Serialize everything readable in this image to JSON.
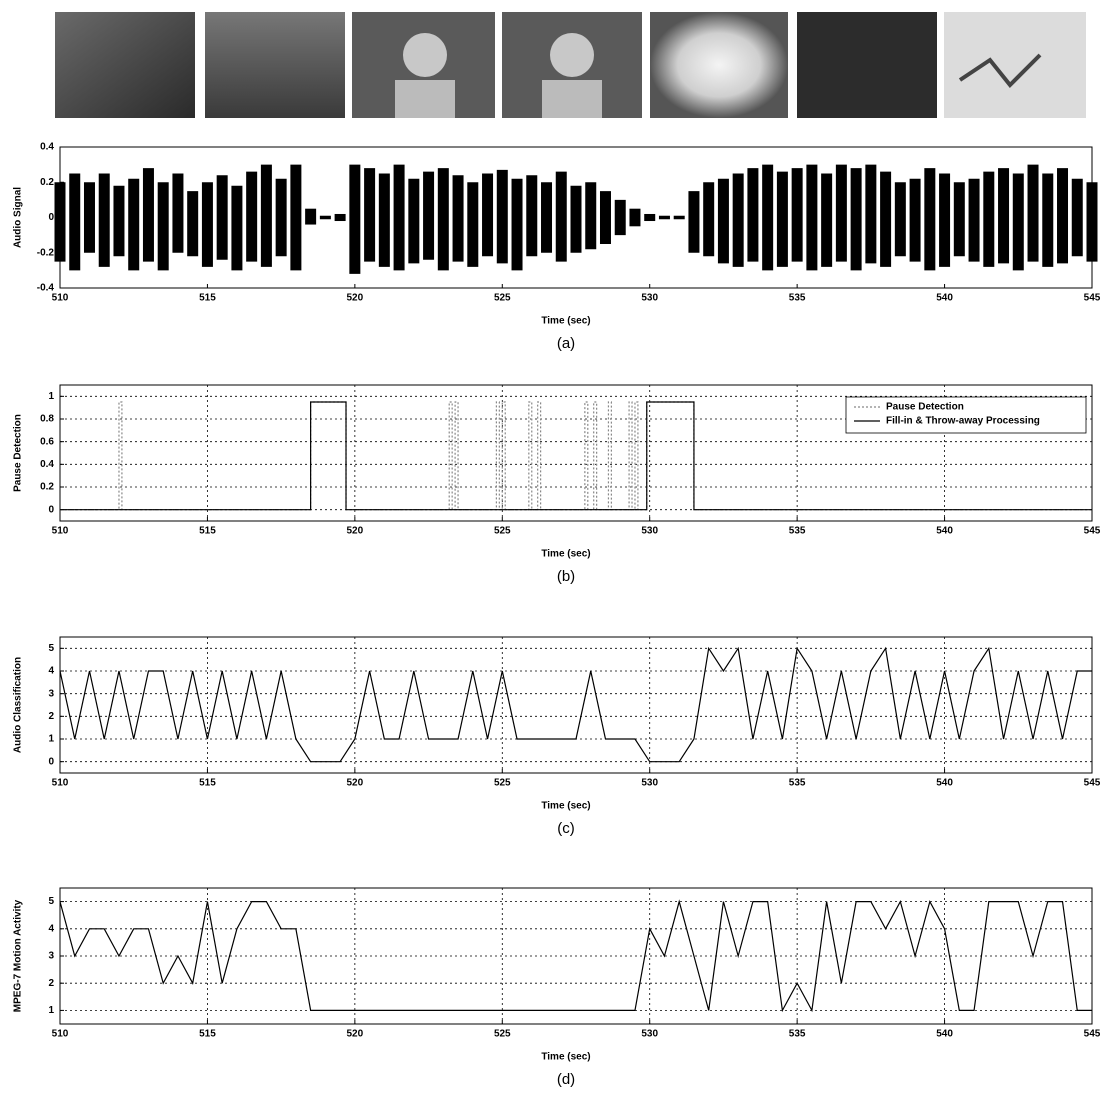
{
  "chart_data": [
    {
      "type": "envelope",
      "ylabel": "Audio Signal",
      "xlabel": "Time (sec)",
      "caption": "(a)",
      "grid": false,
      "color": "#000000",
      "xlim": [
        510,
        545
      ],
      "xticks": [
        510,
        515,
        520,
        525,
        530,
        535,
        540,
        545
      ],
      "ylim": [
        -0.4,
        0.4
      ],
      "yticks": [
        -0.4,
        -0.2,
        0,
        0.2,
        0.4
      ],
      "x": [
        510,
        510.5,
        511,
        511.5,
        512,
        512.5,
        513,
        513.5,
        514,
        514.5,
        515,
        515.5,
        516,
        516.5,
        517,
        517.5,
        518,
        518.5,
        519,
        519.5,
        520,
        520.5,
        521,
        521.5,
        522,
        522.5,
        523,
        523.5,
        524,
        524.5,
        525,
        525.5,
        526,
        526.5,
        527,
        527.5,
        528,
        528.5,
        529,
        529.5,
        530,
        530.5,
        531,
        531.5,
        532,
        532.5,
        533,
        533.5,
        534,
        534.5,
        535,
        535.5,
        536,
        536.5,
        537,
        537.5,
        538,
        538.5,
        539,
        539.5,
        540,
        540.5,
        541,
        541.5,
        542,
        542.5,
        543,
        543.5,
        544,
        544.5,
        545
      ],
      "high": [
        0.2,
        0.25,
        0.2,
        0.25,
        0.18,
        0.22,
        0.28,
        0.2,
        0.25,
        0.15,
        0.2,
        0.24,
        0.18,
        0.26,
        0.3,
        0.22,
        0.3,
        0.05,
        0.01,
        0.02,
        0.3,
        0.28,
        0.25,
        0.3,
        0.22,
        0.26,
        0.28,
        0.24,
        0.2,
        0.25,
        0.27,
        0.22,
        0.24,
        0.2,
        0.26,
        0.18,
        0.2,
        0.15,
        0.1,
        0.05,
        0.02,
        0.01,
        0.01,
        0.15,
        0.2,
        0.22,
        0.25,
        0.28,
        0.3,
        0.26,
        0.28,
        0.3,
        0.25,
        0.3,
        0.28,
        0.3,
        0.26,
        0.2,
        0.22,
        0.28,
        0.25,
        0.2,
        0.22,
        0.26,
        0.28,
        0.25,
        0.3,
        0.25,
        0.28,
        0.22,
        0.2
      ],
      "low": [
        -0.25,
        -0.3,
        -0.2,
        -0.28,
        -0.22,
        -0.3,
        -0.25,
        -0.3,
        -0.2,
        -0.22,
        -0.28,
        -0.24,
        -0.3,
        -0.25,
        -0.28,
        -0.22,
        -0.3,
        -0.04,
        -0.01,
        -0.02,
        -0.32,
        -0.25,
        -0.28,
        -0.3,
        -0.26,
        -0.24,
        -0.3,
        -0.25,
        -0.28,
        -0.22,
        -0.26,
        -0.3,
        -0.22,
        -0.2,
        -0.25,
        -0.2,
        -0.18,
        -0.15,
        -0.1,
        -0.05,
        -0.02,
        -0.01,
        -0.01,
        -0.2,
        -0.22,
        -0.26,
        -0.28,
        -0.25,
        -0.3,
        -0.28,
        -0.25,
        -0.3,
        -0.28,
        -0.25,
        -0.3,
        -0.26,
        -0.28,
        -0.22,
        -0.25,
        -0.3,
        -0.28,
        -0.22,
        -0.25,
        -0.28,
        -0.26,
        -0.3,
        -0.25,
        -0.28,
        -0.26,
        -0.22,
        -0.25
      ]
    },
    {
      "type": "line",
      "ylabel": "Pause Detection",
      "xlabel": "Time (sec)",
      "caption": "(b)",
      "grid": true,
      "legend": "upper right",
      "xlim": [
        510,
        545
      ],
      "xticks": [
        510,
        515,
        520,
        525,
        530,
        535,
        540,
        545
      ],
      "ylim": [
        -0.1,
        1.1
      ],
      "yticks": [
        0,
        0.2,
        0.4,
        0.6,
        0.8,
        1
      ],
      "series": [
        {
          "name": "Pause Detection",
          "color": "#888888",
          "linestyle": "dotted",
          "x": [
            510,
            512,
            512,
            512.1,
            512.1,
            518.5,
            518.5,
            519.7,
            519.7,
            523.2,
            523.2,
            523.3,
            523.3,
            523.4,
            523.4,
            523.5,
            523.5,
            524.8,
            524.8,
            524.9,
            524.9,
            525,
            525,
            525.1,
            525.1,
            525.9,
            525.9,
            526,
            526,
            526.2,
            526.2,
            526.3,
            526.3,
            527.8,
            527.8,
            527.9,
            527.9,
            528.1,
            528.1,
            528.2,
            528.2,
            528.6,
            528.6,
            528.7,
            528.7,
            529.3,
            529.3,
            529.4,
            529.4,
            529.5,
            529.5,
            529.6,
            529.6,
            529.9,
            529.9,
            531.5,
            531.5,
            545
          ],
          "values": [
            0,
            0,
            0.95,
            0.95,
            0,
            0,
            0.95,
            0.95,
            0,
            0,
            0.95,
            0.95,
            0,
            0,
            0.95,
            0.95,
            0,
            0,
            0.95,
            0.95,
            0,
            0,
            0.95,
            0.95,
            0,
            0,
            0.95,
            0.95,
            0,
            0,
            0.95,
            0.95,
            0,
            0,
            0.95,
            0.95,
            0,
            0,
            0.95,
            0.95,
            0,
            0,
            0.95,
            0.95,
            0,
            0,
            0.95,
            0.95,
            0,
            0,
            0.95,
            0.95,
            0,
            0,
            0.95,
            0.95,
            0,
            0
          ]
        },
        {
          "name": "Fill-in & Throw-away Processing",
          "color": "#000000",
          "linestyle": "solid",
          "x": [
            510,
            518.5,
            518.5,
            519.7,
            519.7,
            529.9,
            529.9,
            531.5,
            531.5,
            545
          ],
          "values": [
            0,
            0,
            0.95,
            0.95,
            0,
            0,
            0.95,
            0.95,
            0,
            0
          ]
        }
      ]
    },
    {
      "type": "line",
      "ylabel": "Audio Classification",
      "xlabel": "Time (sec)",
      "caption": "(c)",
      "grid": true,
      "color": "#000000",
      "xlim": [
        510,
        545
      ],
      "xticks": [
        510,
        515,
        520,
        525,
        530,
        535,
        540,
        545
      ],
      "ylim": [
        -0.5,
        5.5
      ],
      "yticks": [
        0,
        1,
        2,
        3,
        4,
        5
      ],
      "x": [
        510,
        510.5,
        511,
        511.5,
        512,
        512.5,
        513,
        513.5,
        514,
        514.5,
        515,
        515.5,
        516,
        516.5,
        517,
        517.5,
        518,
        518.5,
        519,
        519.5,
        520,
        520.5,
        521,
        521.5,
        522,
        522.5,
        523,
        523.5,
        524,
        524.5,
        525,
        525.5,
        526,
        526.5,
        527,
        527.5,
        528,
        528.5,
        529,
        529.5,
        530,
        530.5,
        531,
        531.5,
        532,
        532.5,
        533,
        533.5,
        534,
        534.5,
        535,
        535.5,
        536,
        536.5,
        537,
        537.5,
        538,
        538.5,
        539,
        539.5,
        540,
        540.5,
        541,
        541.5,
        542,
        542.5,
        543,
        543.5,
        544,
        544.5,
        545
      ],
      "values": [
        4,
        1,
        4,
        1,
        4,
        1,
        4,
        4,
        1,
        4,
        1,
        4,
        1,
        4,
        1,
        4,
        1,
        0,
        0,
        0,
        1,
        4,
        1,
        1,
        4,
        1,
        1,
        1,
        4,
        1,
        4,
        1,
        1,
        1,
        1,
        1,
        4,
        1,
        1,
        1,
        0,
        0,
        0,
        1,
        5,
        4,
        5,
        1,
        4,
        1,
        5,
        4,
        1,
        4,
        1,
        4,
        5,
        1,
        4,
        1,
        4,
        1,
        4,
        5,
        1,
        4,
        1,
        4,
        1,
        4,
        4
      ]
    },
    {
      "type": "line",
      "ylabel": "MPEG-7 Motion Activity",
      "xlabel": "Time (sec)",
      "caption": "(d)",
      "grid": true,
      "color": "#000000",
      "xlim": [
        510,
        545
      ],
      "xticks": [
        510,
        515,
        520,
        525,
        530,
        535,
        540,
        545
      ],
      "ylim": [
        0.5,
        5.5
      ],
      "yticks": [
        1,
        2,
        3,
        4,
        5
      ],
      "x": [
        510,
        510.5,
        511,
        511.5,
        512,
        512.5,
        513,
        513.5,
        514,
        514.5,
        515,
        515.5,
        516,
        516.5,
        517,
        517.5,
        518,
        518.5,
        519,
        519.5,
        520,
        520.5,
        521,
        521.5,
        522,
        522.5,
        523,
        523.5,
        524,
        524.5,
        525,
        525.5,
        526,
        526.5,
        527,
        527.5,
        528,
        528.5,
        529,
        529.5,
        530,
        530.5,
        531,
        531.5,
        532,
        532.5,
        533,
        533.5,
        534,
        534.5,
        535,
        535.5,
        536,
        536.5,
        537,
        537.5,
        538,
        538.5,
        539,
        539.5,
        540,
        540.5,
        541,
        541.5,
        542,
        542.5,
        543,
        543.5,
        544,
        544.5,
        545
      ],
      "values": [
        5,
        3,
        4,
        4,
        3,
        4,
        4,
        2,
        3,
        2,
        5,
        2,
        4,
        5,
        5,
        4,
        4,
        1,
        1,
        1,
        1,
        1,
        1,
        1,
        1,
        1,
        1,
        1,
        1,
        1,
        1,
        1,
        1,
        1,
        1,
        1,
        1,
        1,
        1,
        1,
        4,
        3,
        5,
        3,
        1,
        5,
        3,
        5,
        5,
        1,
        2,
        1,
        5,
        2,
        5,
        5,
        4,
        5,
        3,
        5,
        4,
        1,
        1,
        5,
        5,
        5,
        3,
        5,
        5,
        1,
        1
      ]
    }
  ]
}
